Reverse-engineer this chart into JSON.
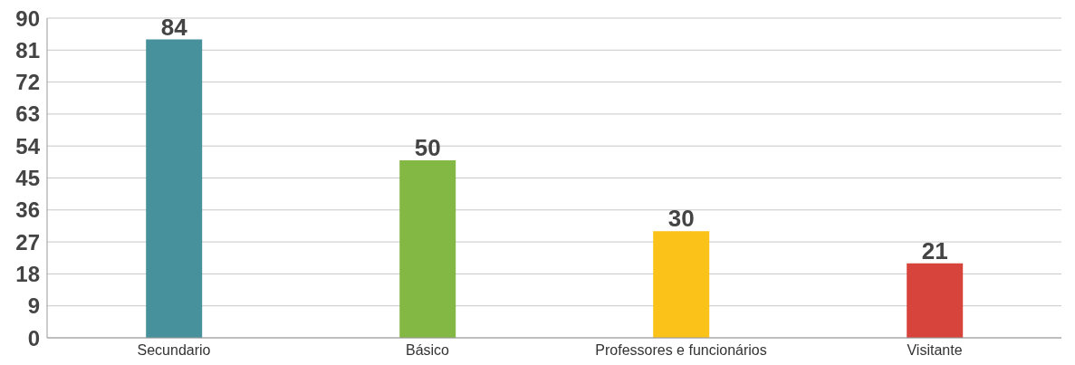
{
  "chart_data": {
    "type": "bar",
    "categories": [
      "Secundario",
      "Básico",
      "Professores e funcionários",
      "Visitante"
    ],
    "values": [
      84,
      50,
      30,
      21
    ],
    "colors": [
      "#46919b",
      "#82b843",
      "#fbc21a",
      "#d6443b"
    ],
    "ylim": [
      0,
      90
    ],
    "yticks": [
      0,
      9,
      18,
      27,
      36,
      45,
      54,
      63,
      72,
      81,
      90
    ],
    "grid": "y",
    "data_labels": true
  }
}
